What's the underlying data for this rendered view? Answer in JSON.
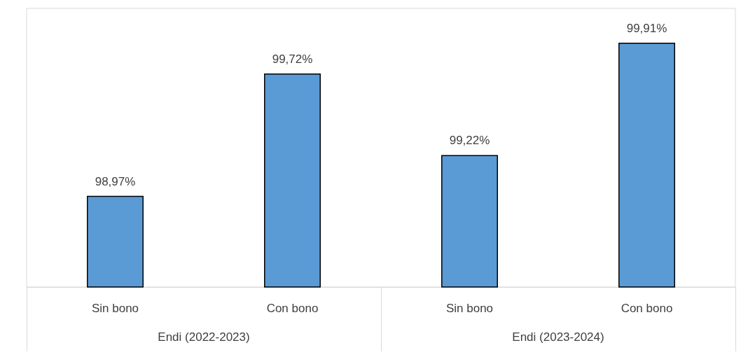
{
  "chart_data": {
    "type": "bar",
    "categories": [
      "Sin bono",
      "Con bono",
      "Sin bono",
      "Con bono"
    ],
    "values": [
      98.97,
      99.72,
      99.22,
      99.91
    ],
    "value_labels": [
      "98,97%",
      "99,72%",
      "99,22%",
      "99,91%"
    ],
    "color": "#5b9bd5",
    "ylim": [
      98.41,
      100.12
    ],
    "annotations": [
      "Endi (2022-2023)",
      "Endi (2023-2024)"
    ]
  }
}
